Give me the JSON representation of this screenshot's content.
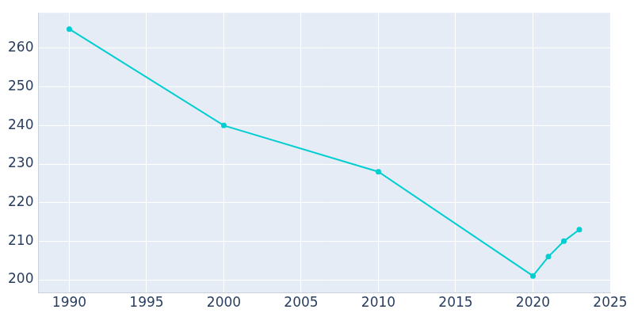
{
  "chart_data": {
    "type": "line",
    "x": [
      1990,
      2000,
      2010,
      2020,
      2021,
      2022,
      2023
    ],
    "values": [
      265,
      240,
      228,
      201,
      206,
      210,
      213
    ],
    "color": "#00ced1",
    "marker": "circle",
    "xlim": [
      1988,
      2025
    ],
    "xticks": [
      1990,
      1995,
      2000,
      2005,
      2010,
      2015,
      2020,
      2025
    ],
    "ylim": [
      196.6,
      269.2
    ],
    "yticks": [
      200,
      210,
      220,
      230,
      240,
      250,
      260
    ],
    "grid": true
  }
}
